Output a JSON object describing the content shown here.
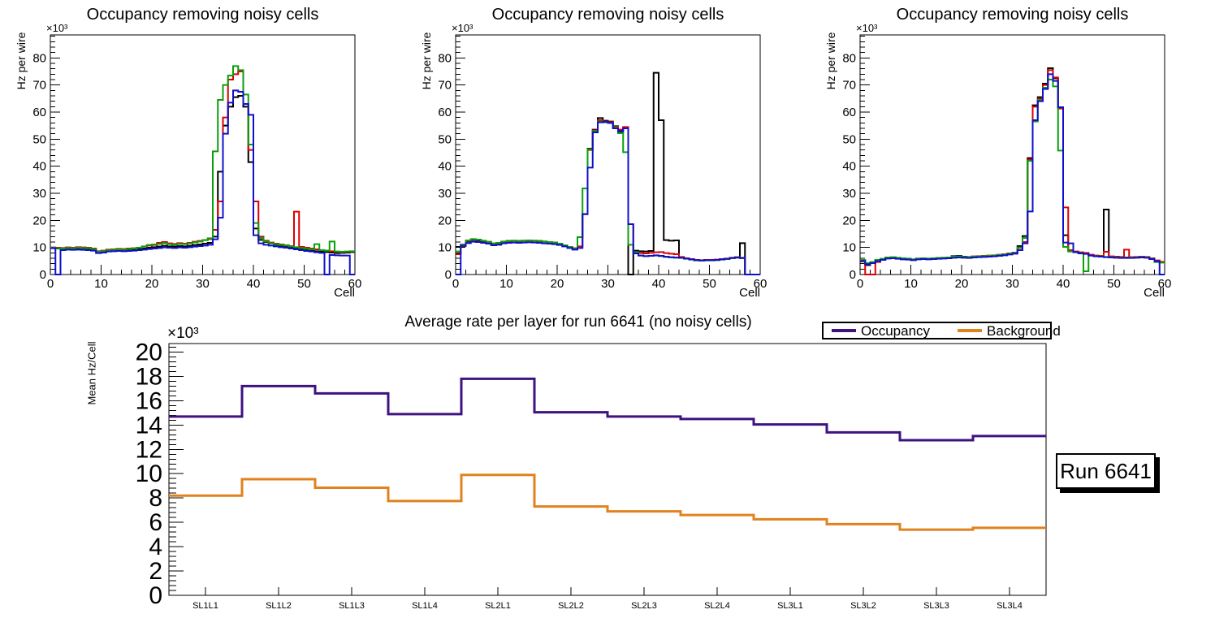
{
  "run_label": "Run 6641",
  "palette": {
    "canvas_bg": "#ffffff",
    "frame": "#000000",
    "hist_black": "#000000",
    "hist_red": "#dd0000",
    "hist_green": "#0a9f0a",
    "hist_blue": "#1010cc",
    "occupancy": "#3f1280",
    "background": "#e0821e"
  },
  "chart_data": [
    {
      "type": "bar",
      "subtype": "step-histogram-outline",
      "title": "Occupancy removing noisy cells",
      "xlabel": "Cell",
      "ylabel": "Hz per wire",
      "y_scale_exponent": "×10³",
      "xlim": [
        0,
        60
      ],
      "ylim_k": [
        0,
        88.5
      ],
      "grid": false,
      "x_tick_labels": [
        "0",
        "10",
        "20",
        "30",
        "40",
        "50",
        "60"
      ],
      "y_tick_labels": [
        "0",
        "10",
        "20",
        "30",
        "40",
        "50",
        "60",
        "70",
        "80"
      ],
      "values_unit": "Hz ×10³ per wire, one value per cell bin",
      "series": [
        {
          "name": "hist-black",
          "color": "#000000",
          "values": [
            9.8,
            9.6,
            9.4,
            9.5,
            9.4,
            9.5,
            9.4,
            9.3,
            9.1,
            8.2,
            8.4,
            8.8,
            8.9,
            9.0,
            8.9,
            9.0,
            9.1,
            9.3,
            9.6,
            9.9,
            10.1,
            10.3,
            10.6,
            10.4,
            10.3,
            10.5,
            10.4,
            10.6,
            10.9,
            11.1,
            11.4,
            11.7,
            14.0,
            38.0,
            55.0,
            62.0,
            65.5,
            66.0,
            62.0,
            41.5,
            17.0,
            12.8,
            12.0,
            11.5,
            11.0,
            10.6,
            10.3,
            10.0,
            9.7,
            9.4,
            9.1,
            8.9,
            8.6,
            8.4,
            8.3,
            8.1,
            7.9,
            8.0,
            8.1,
            8.3
          ]
        },
        {
          "name": "hist-red",
          "color": "#dd0000",
          "values": [
            10.0,
            9.9,
            9.8,
            10.0,
            9.9,
            10.1,
            10.0,
            9.9,
            9.6,
            8.6,
            8.8,
            9.2,
            9.3,
            9.5,
            9.4,
            9.6,
            9.7,
            9.9,
            10.3,
            10.7,
            10.9,
            11.7,
            12.0,
            11.5,
            11.3,
            11.6,
            11.4,
            11.7,
            12.1,
            12.4,
            12.7,
            13.1,
            16.5,
            27.0,
            58.0,
            72.0,
            74.0,
            75.0,
            63.0,
            46.0,
            27.0,
            14.0,
            12.5,
            11.8,
            11.4,
            11.1,
            10.8,
            10.5,
            23.2,
            10.2,
            9.9,
            9.6,
            9.3,
            9.0,
            8.8,
            8.6,
            8.4,
            8.3,
            8.4,
            8.5
          ]
        },
        {
          "name": "hist-green",
          "color": "#0a9f0a",
          "values": [
            9.9,
            9.7,
            9.6,
            9.8,
            9.7,
            9.9,
            9.8,
            9.7,
            9.4,
            8.4,
            8.6,
            9.0,
            9.1,
            9.3,
            9.2,
            9.4,
            9.6,
            9.9,
            10.4,
            10.9,
            11.1,
            11.3,
            11.6,
            11.2,
            11.0,
            11.3,
            11.2,
            11.5,
            11.9,
            12.2,
            12.7,
            13.4,
            45.5,
            64.5,
            70.0,
            73.5,
            77.0,
            75.5,
            66.5,
            48.0,
            19.0,
            13.5,
            12.2,
            11.6,
            11.2,
            10.9,
            10.7,
            10.4,
            10.1,
            9.8,
            9.5,
            9.3,
            11.2,
            9.0,
            8.8,
            12.2,
            8.5,
            8.4,
            8.5,
            8.6
          ]
        },
        {
          "name": "hist-blue",
          "color": "#1010cc",
          "values": [
            9.7,
            0,
            9.0,
            9.2,
            9.1,
            9.2,
            9.1,
            9.0,
            8.8,
            7.9,
            8.1,
            8.5,
            8.6,
            8.7,
            8.6,
            8.7,
            8.8,
            9.0,
            9.2,
            9.4,
            9.6,
            9.8,
            10.0,
            9.9,
            9.8,
            10.0,
            9.9,
            10.1,
            10.3,
            10.5,
            10.7,
            11.0,
            13.0,
            21.0,
            52.0,
            63.5,
            68.0,
            67.5,
            63.0,
            59.0,
            14.5,
            11.5,
            11.0,
            10.7,
            10.4,
            10.1,
            9.9,
            9.6,
            9.3,
            9.0,
            8.7,
            8.5,
            8.2,
            8.0,
            0,
            7.2,
            7.1,
            7.0,
            7.0,
            0
          ]
        }
      ]
    },
    {
      "type": "bar",
      "subtype": "step-histogram-outline",
      "title": "Occupancy removing noisy cells",
      "xlabel": "Cell",
      "ylabel": "Hz per wire",
      "y_scale_exponent": "×10³",
      "xlim": [
        0,
        60
      ],
      "ylim_k": [
        0,
        88.5
      ],
      "grid": false,
      "x_tick_labels": [
        "0",
        "10",
        "20",
        "30",
        "40",
        "50",
        "60"
      ],
      "y_tick_labels": [
        "0",
        "10",
        "20",
        "30",
        "40",
        "50",
        "60",
        "70",
        "80"
      ],
      "values_unit": "Hz ×10³ per wire, one value per cell bin",
      "series": [
        {
          "name": "hist-black",
          "color": "#000000",
          "values": [
            10.2,
            11.0,
            12.2,
            12.8,
            12.6,
            12.2,
            11.8,
            11.2,
            11.5,
            12.0,
            12.4,
            12.5,
            12.4,
            12.5,
            12.6,
            12.5,
            12.4,
            12.2,
            12.0,
            11.8,
            11.4,
            10.8,
            10.2,
            9.6,
            13.8,
            22.3,
            46.5,
            53.5,
            57.8,
            56.8,
            56.5,
            54.8,
            53.2,
            54.2,
            0,
            8.8,
            8.6,
            8.5,
            8.7,
            74.5,
            57.0,
            12.7,
            12.5,
            12.6,
            6.3,
            5.9,
            5.6,
            5.3,
            5.2,
            5.3,
            5.3,
            5.4,
            5.6,
            5.8,
            6.1,
            6.3,
            11.6,
            0,
            0,
            0
          ]
        },
        {
          "name": "hist-red",
          "color": "#dd0000",
          "values": [
            7.5,
            10.5,
            12.4,
            13.0,
            12.8,
            12.4,
            12.0,
            11.4,
            11.6,
            12.1,
            12.3,
            12.4,
            12.3,
            12.4,
            12.5,
            12.4,
            12.3,
            12.1,
            11.9,
            11.7,
            11.3,
            10.7,
            10.1,
            9.7,
            10.4,
            22.3,
            46.0,
            53.3,
            57.0,
            56.5,
            56.3,
            54.6,
            53.5,
            54.5,
            18.6,
            8.1,
            7.9,
            7.8,
            8.0,
            8.2,
            8.3,
            7.9,
            7.7,
            7.5,
            6.5,
            6.0,
            5.7,
            5.4,
            5.3,
            5.4,
            5.4,
            5.5,
            5.7,
            5.9,
            6.2,
            6.4,
            6.2,
            0,
            0,
            0
          ]
        },
        {
          "name": "hist-green",
          "color": "#0a9f0a",
          "values": [
            8.5,
            10.8,
            12.6,
            13.1,
            12.9,
            12.5,
            12.1,
            11.5,
            11.7,
            12.2,
            12.4,
            12.5,
            12.4,
            12.5,
            12.6,
            12.5,
            12.4,
            12.2,
            12.0,
            11.8,
            11.4,
            10.8,
            10.2,
            9.5,
            13.8,
            31.8,
            46.3,
            53.0,
            56.5,
            56.2,
            56.0,
            54.3,
            52.2,
            45.2,
            11.0,
            8.3,
            7.0,
            6.8,
            6.9,
            7.0,
            6.8,
            6.5,
            6.3,
            6.2,
            6.1,
            5.8,
            5.5,
            5.2,
            5.1,
            5.2,
            5.2,
            5.3,
            5.5,
            5.7,
            6.0,
            6.2,
            6.0,
            0,
            0,
            0
          ]
        },
        {
          "name": "hist-blue",
          "color": "#1010cc",
          "values": [
            0,
            10.6,
            11.6,
            12.1,
            12.0,
            11.7,
            11.4,
            10.8,
            11.0,
            11.5,
            11.7,
            11.8,
            11.7,
            11.8,
            11.9,
            11.8,
            11.7,
            11.5,
            11.4,
            11.2,
            10.9,
            10.4,
            9.8,
            9.2,
            9.8,
            22.3,
            39.5,
            52.5,
            56.2,
            56.4,
            56.0,
            54.0,
            52.8,
            54.0,
            18.6,
            7.8,
            7.0,
            6.8,
            6.9,
            7.1,
            6.9,
            6.6,
            6.4,
            6.3,
            6.2,
            5.9,
            5.6,
            5.3,
            5.2,
            5.3,
            5.3,
            5.4,
            5.6,
            5.8,
            6.1,
            6.3,
            6.1,
            0,
            0,
            0
          ]
        }
      ]
    },
    {
      "type": "bar",
      "subtype": "step-histogram-outline",
      "title": "Occupancy removing noisy cells",
      "xlabel": "Cell",
      "ylabel": "Hz per wire",
      "y_scale_exponent": "×10³",
      "xlim": [
        0,
        60
      ],
      "ylim_k": [
        0,
        88.5
      ],
      "grid": false,
      "x_tick_labels": [
        "0",
        "10",
        "20",
        "30",
        "40",
        "50",
        "60"
      ],
      "y_tick_labels": [
        "0",
        "10",
        "20",
        "30",
        "40",
        "50",
        "60",
        "70",
        "80"
      ],
      "values_unit": "Hz ×10³ per wire, one value per cell bin",
      "series": [
        {
          "name": "hist-black",
          "color": "#000000",
          "values": [
            5.2,
            3.5,
            4.3,
            5.2,
            5.6,
            6.2,
            6.3,
            6.1,
            5.9,
            5.8,
            5.5,
            5.8,
            5.9,
            5.8,
            5.9,
            6.0,
            6.1,
            6.2,
            6.8,
            6.9,
            6.6,
            6.4,
            6.6,
            6.7,
            6.8,
            6.9,
            7.0,
            7.2,
            7.4,
            7.7,
            8.0,
            10.5,
            14.2,
            43.0,
            62.5,
            65.5,
            70.5,
            76.2,
            72.5,
            61.5,
            14.5,
            8.8,
            8.4,
            8.1,
            7.9,
            7.2,
            6.9,
            6.8,
            24.0,
            6.6,
            6.5,
            6.4,
            6.3,
            6.3,
            6.4,
            6.5,
            6.4,
            5.9,
            5.1,
            4.6
          ]
        },
        {
          "name": "hist-red",
          "color": "#dd0000",
          "values": [
            4.8,
            0,
            0,
            4.6,
            5.5,
            6.1,
            6.2,
            6.0,
            5.8,
            5.7,
            5.6,
            5.9,
            6.0,
            5.9,
            6.0,
            6.1,
            6.2,
            6.3,
            6.5,
            6.6,
            6.5,
            6.5,
            6.7,
            6.8,
            6.9,
            7.0,
            7.1,
            7.3,
            7.5,
            7.8,
            8.1,
            9.8,
            12.0,
            42.5,
            62.0,
            65.0,
            70.0,
            75.5,
            72.8,
            61.3,
            24.8,
            9.0,
            8.5,
            8.2,
            8.0,
            7.3,
            7.0,
            6.9,
            8.4,
            6.7,
            6.6,
            6.5,
            9.2,
            6.4,
            6.5,
            6.6,
            6.5,
            6.0,
            5.2,
            4.7
          ]
        },
        {
          "name": "hist-green",
          "color": "#0a9f0a",
          "values": [
            5.4,
            4.2,
            4.6,
            5.4,
            5.8,
            6.3,
            6.4,
            6.2,
            6.0,
            5.9,
            5.6,
            5.9,
            6.0,
            5.9,
            6.0,
            6.1,
            6.2,
            6.3,
            6.6,
            6.7,
            6.5,
            6.4,
            6.6,
            6.7,
            6.8,
            6.9,
            7.0,
            7.2,
            7.4,
            7.7,
            8.0,
            10.0,
            13.5,
            42.0,
            56.5,
            64.5,
            69.0,
            72.0,
            69.5,
            45.8,
            10.2,
            8.5,
            8.2,
            7.9,
            1.2,
            7.0,
            6.8,
            6.7,
            6.5,
            6.4,
            6.3,
            6.2,
            6.2,
            6.2,
            6.3,
            6.4,
            6.3,
            5.8,
            4.6,
            4.4
          ]
        },
        {
          "name": "hist-blue",
          "color": "#1010cc",
          "values": [
            5.0,
            3.8,
            4.2,
            5.0,
            5.4,
            5.9,
            6.0,
            5.8,
            5.6,
            5.5,
            5.3,
            5.6,
            5.7,
            5.6,
            5.7,
            5.8,
            5.9,
            6.0,
            6.2,
            6.3,
            6.2,
            6.1,
            6.3,
            6.4,
            6.5,
            6.6,
            6.7,
            6.9,
            7.1,
            7.4,
            7.7,
            9.0,
            11.5,
            23.3,
            57.0,
            64.0,
            68.5,
            74.0,
            71.5,
            61.8,
            11.8,
            11.5,
            8.3,
            7.8,
            7.6,
            7.0,
            6.7,
            6.6,
            6.4,
            6.3,
            6.2,
            6.1,
            6.1,
            6.1,
            6.2,
            6.3,
            6.2,
            5.7,
            4.9,
            0
          ]
        }
      ]
    },
    {
      "type": "line",
      "subtype": "step-line",
      "title": "Average rate per layer for run 6641 (no noisy cells)",
      "xlabel": "",
      "ylabel": "Mean Hz/Cell",
      "y_scale_exponent": "×10³",
      "ylim_k": [
        0,
        20.7
      ],
      "grid": false,
      "y_tick_labels": [
        "0",
        "2",
        "4",
        "6",
        "8",
        "10",
        "12",
        "14",
        "16",
        "18",
        "20"
      ],
      "categories": [
        "SL1L1",
        "SL1L2",
        "SL1L3",
        "SL1L4",
        "SL2L1",
        "SL2L2",
        "SL2L3",
        "SL2L4",
        "SL3L1",
        "SL3L2",
        "SL3L3",
        "SL3L4"
      ],
      "legend_position": "top-right",
      "values_unit": "Mean Hz/Cell ×10³ per layer",
      "series": [
        {
          "name": "Occupancy",
          "color": "#3f1280",
          "values": [
            14.7,
            17.2,
            16.6,
            14.9,
            17.8,
            15.05,
            14.7,
            14.5,
            14.05,
            13.4,
            12.75,
            13.1
          ]
        },
        {
          "name": "Background",
          "color": "#e0821e",
          "values": [
            8.2,
            9.55,
            8.85,
            7.75,
            9.9,
            7.3,
            6.9,
            6.6,
            6.25,
            5.85,
            5.4,
            5.55
          ]
        }
      ]
    }
  ]
}
